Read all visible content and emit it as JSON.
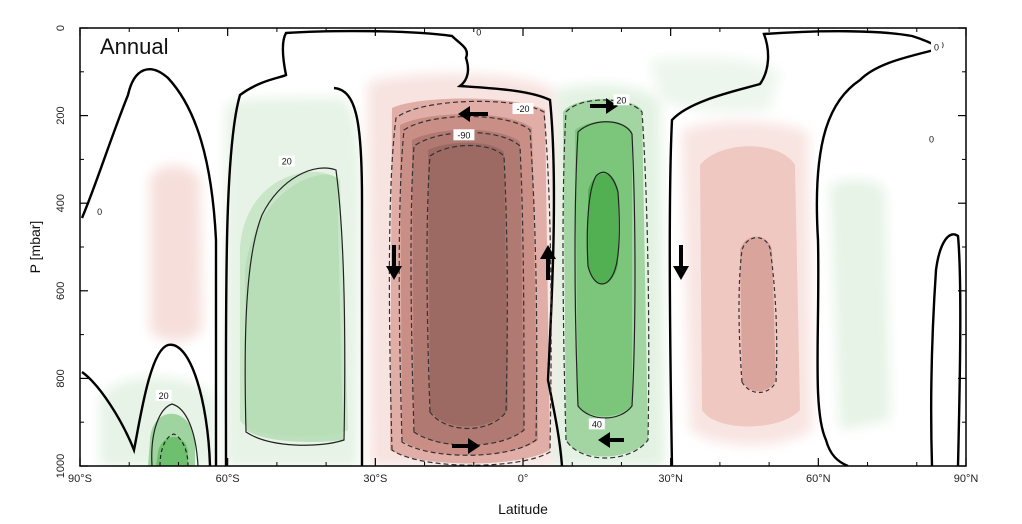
{
  "chart_data": {
    "type": "heatmap",
    "title": "",
    "panel_label": "Annual",
    "xlabel": "Latitude",
    "ylabel": "P [mbar]",
    "xlim": [
      -90,
      90
    ],
    "ylim": [
      1000,
      0
    ],
    "x_ticks": [
      {
        "value": -90,
        "label": "90°S"
      },
      {
        "value": -60,
        "label": "60°S"
      },
      {
        "value": -30,
        "label": "30°S"
      },
      {
        "value": 0,
        "label": "0°"
      },
      {
        "value": 30,
        "label": "30°N"
      },
      {
        "value": 60,
        "label": "60°N"
      },
      {
        "value": 90,
        "label": "90°N"
      }
    ],
    "y_ticks": [
      {
        "value": 0,
        "label": "0"
      },
      {
        "value": 200,
        "label": "200"
      },
      {
        "value": 400,
        "label": "400"
      },
      {
        "value": 600,
        "label": "600"
      },
      {
        "value": 800,
        "label": "800"
      },
      {
        "value": 1000,
        "label": "1000"
      }
    ],
    "colors": {
      "positive_light": "#e3f2e3",
      "positive_mid": "#a6d7a6",
      "positive_dark": "#5cb85c",
      "negative_light": "#f7e1de",
      "negative_mid": "#dcaaa2",
      "negative_dark": "#b88078",
      "zero_contour": "#000000"
    },
    "cells": [
      {
        "name": "southern-polar-cell-positive",
        "sign": "positive",
        "lat_range": [
          -75,
          -70
        ],
        "p_range": [
          850,
          1000
        ],
        "peak": 40
      },
      {
        "name": "southern-ferrel-cell",
        "sign": "positive",
        "lat_range": [
          -64,
          -36
        ],
        "p_range": [
          290,
          980
        ],
        "peak": 20
      },
      {
        "name": "southern-hadley-cell",
        "sign": "negative",
        "lat_range": [
          -30,
          4
        ],
        "p_range": [
          170,
          1000
        ],
        "peak": -90
      },
      {
        "name": "northern-hadley-cell",
        "sign": "positive",
        "lat_range": [
          8,
          28
        ],
        "p_range": [
          180,
          960
        ],
        "peak": 60
      },
      {
        "name": "northern-ferrel-cell",
        "sign": "negative",
        "lat_range": [
          36,
          58
        ],
        "p_range": [
          280,
          960
        ],
        "peak": -20
      },
      {
        "name": "southern-polar-weak-negative",
        "sign": "negative",
        "lat_range": [
          -72,
          -68
        ],
        "p_range": [
          320,
          640
        ],
        "peak": -5
      },
      {
        "name": "northern-polar-weak-positive",
        "sign": "positive",
        "lat_range": [
          63,
          72
        ],
        "p_range": [
          360,
          900
        ],
        "peak": 5
      }
    ],
    "contour_labels": [
      {
        "text": "0",
        "lat": -86,
        "p": 420
      },
      {
        "text": "0",
        "lat": -9,
        "p": 10
      },
      {
        "text": "0",
        "lat": 85,
        "p": 40
      },
      {
        "text": "0",
        "lat": 83,
        "p": 255
      },
      {
        "text": "20",
        "lat": -48,
        "p": 305
      },
      {
        "text": "20",
        "lat": -73,
        "p": 840
      },
      {
        "text": "-90",
        "lat": -12,
        "p": 245
      },
      {
        "text": "-20",
        "lat": 0,
        "p": 185
      },
      {
        "text": "20",
        "lat": 20,
        "p": 165
      },
      {
        "text": "40",
        "lat": 15,
        "p": 905
      },
      {
        "text": "0",
        "lat": 84,
        "p": 45
      }
    ],
    "flow_arrows": [
      {
        "name": "arrow-sh-top-west",
        "lat": -10,
        "p": 185,
        "dir": "left"
      },
      {
        "name": "arrow-sh-descending",
        "lat": -28,
        "p": 530,
        "dir": "down"
      },
      {
        "name": "arrow-sh-ascending",
        "lat": 5,
        "p": 530,
        "dir": "up"
      },
      {
        "name": "arrow-sh-bottom-east",
        "lat": -12,
        "p": 950,
        "dir": "right"
      },
      {
        "name": "arrow-nh-top-east",
        "lat": 15,
        "p": 170,
        "dir": "right"
      },
      {
        "name": "arrow-nh-descending",
        "lat": 34,
        "p": 540,
        "dir": "down"
      },
      {
        "name": "arrow-nh-bottom-west",
        "lat": 20,
        "p": 930,
        "dir": "left"
      }
    ],
    "grid": false,
    "legend": "none"
  }
}
